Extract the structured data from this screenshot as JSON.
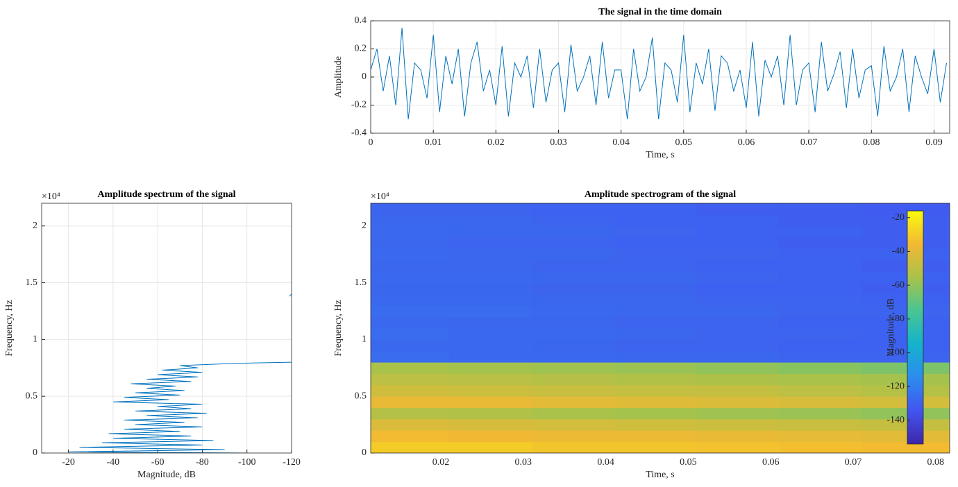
{
  "chart_data": [
    {
      "type": "line",
      "title": "The signal in the time domain",
      "x_label": "Time, s",
      "y_label": "Amplitude",
      "color": "#0072bd",
      "grid": true,
      "x": [
        0,
        0.001,
        0.002,
        0.003,
        0.004,
        0.005,
        0.006,
        0.007,
        0.008,
        0.009,
        0.01,
        0.011,
        0.012,
        0.013,
        0.014,
        0.015,
        0.016,
        0.017,
        0.018,
        0.019,
        0.02,
        0.021,
        0.022,
        0.023,
        0.024,
        0.025,
        0.026,
        0.027,
        0.028,
        0.029,
        0.03,
        0.031,
        0.032,
        0.033,
        0.034,
        0.035,
        0.036,
        0.037,
        0.038,
        0.039,
        0.04,
        0.041,
        0.042,
        0.043,
        0.044,
        0.045,
        0.046,
        0.047,
        0.048,
        0.049,
        0.05,
        0.051,
        0.052,
        0.053,
        0.054,
        0.055,
        0.056,
        0.057,
        0.058,
        0.059,
        0.06,
        0.061,
        0.062,
        0.063,
        0.064,
        0.065,
        0.066,
        0.067,
        0.068,
        0.069,
        0.07,
        0.071,
        0.072,
        0.073,
        0.074,
        0.075,
        0.076,
        0.077,
        0.078,
        0.079,
        0.08,
        0.081,
        0.082,
        0.083,
        0.084,
        0.085,
        0.086,
        0.087,
        0.088,
        0.089,
        0.09,
        0.091,
        0.092
      ],
      "y": [
        0.05,
        0.2,
        -0.1,
        0.15,
        -0.2,
        0.35,
        -0.3,
        0.1,
        0.05,
        -0.15,
        0.3,
        -0.25,
        0.15,
        -0.05,
        0.2,
        -0.28,
        0.1,
        0.25,
        -0.1,
        0.05,
        -0.2,
        0.22,
        -0.28,
        0.1,
        0.0,
        0.15,
        -0.22,
        0.2,
        -0.18,
        0.05,
        0.1,
        -0.25,
        0.23,
        -0.1,
        0.0,
        0.15,
        -0.2,
        0.25,
        -0.15,
        0.05,
        0.05,
        -0.3,
        0.2,
        -0.1,
        0.0,
        0.28,
        -0.3,
        0.1,
        0.05,
        -0.18,
        0.3,
        -0.25,
        0.1,
        -0.05,
        0.2,
        -0.24,
        0.15,
        0.1,
        -0.1,
        0.05,
        -0.22,
        0.25,
        -0.28,
        0.12,
        0.0,
        0.15,
        -0.2,
        0.3,
        -0.2,
        0.05,
        0.1,
        -0.25,
        0.25,
        -0.1,
        0.02,
        0.18,
        -0.22,
        0.2,
        -0.15,
        0.05,
        0.08,
        -0.28,
        0.22,
        -0.1,
        0.0,
        0.2,
        -0.25,
        0.15,
        0.0,
        -0.12,
        0.2,
        -0.18,
        0.1
      ],
      "xlim": [
        0,
        0.0925
      ],
      "ylim": [
        -0.4,
        0.4
      ],
      "xticks": [
        0,
        0.01,
        0.02,
        0.03,
        0.04,
        0.05,
        0.06,
        0.07,
        0.08,
        0.09
      ],
      "yticks": [
        -0.4,
        -0.2,
        0,
        0.2,
        0.4
      ]
    },
    {
      "type": "line",
      "title": "Amplitude spectrum of the signal",
      "x_label": "Magnitude, dB",
      "y_label": "Frequency, Hz",
      "y_exponent": "×10⁴",
      "color": "#0072bd",
      "grid": true,
      "x": [
        -100,
        -20,
        -90,
        -25,
        -80,
        -35,
        -85,
        -40,
        -75,
        -38,
        -70,
        -45,
        -80,
        -50,
        -72,
        -45,
        -78,
        -55,
        -82,
        -50,
        -75,
        -60,
        -80,
        -40,
        -65,
        -45,
        -70,
        -50,
        -72,
        -55,
        -68,
        -48,
        -75,
        -55,
        -78,
        -60,
        -80,
        -62,
        -78,
        -70,
        -95,
        -120,
        null,
        -119,
        -120
      ],
      "y": [
        0,
        100,
        300,
        500,
        700,
        900,
        1100,
        1300,
        1500,
        1700,
        1900,
        2100,
        2300,
        2500,
        2700,
        2900,
        3100,
        3300,
        3500,
        3700,
        3900,
        4100,
        4300,
        4500,
        4700,
        4900,
        5100,
        5300,
        5500,
        5700,
        5900,
        6100,
        6300,
        6500,
        6700,
        6900,
        7100,
        7300,
        7500,
        7700,
        7900,
        8000,
        8500,
        13800,
        14000
      ],
      "xlim": [
        -8,
        -120
      ],
      "ylim": [
        0,
        22000
      ],
      "xticks": [
        -20,
        -40,
        -60,
        -80,
        -100,
        -120
      ],
      "yticks": [
        0,
        {
          "value": 5000,
          "label": "0.5"
        },
        {
          "value": 10000,
          "label": "1"
        },
        {
          "value": 15000,
          "label": "1.5"
        },
        {
          "value": 20000,
          "label": "2"
        }
      ]
    },
    {
      "type": "heatmap",
      "title": "Amplitude spectrogram of the signal",
      "x_label": "Time, s",
      "y_label": "Frequency, Hz",
      "y_exponent": "×10⁴",
      "colorbar_label": "Magnitude, dB",
      "grid": false,
      "colormap": [
        "#3e26a8",
        "#4255f0",
        "#2d8cee",
        "#14b2cc",
        "#48c593",
        "#a8c24a",
        "#f2b933",
        "#f9fb0e"
      ],
      "xbins": [
        0.0115,
        0.021,
        0.031,
        0.041,
        0.051,
        0.061,
        0.071,
        0.0817
      ],
      "ybins": [
        0,
        1000,
        2000,
        3000,
        4000,
        5000,
        6000,
        7000,
        8000,
        9000,
        10000,
        11000,
        12000,
        13000,
        14000,
        15000,
        16000,
        17000,
        18000,
        19000,
        20000,
        21000,
        22000
      ],
      "z": [
        [
          -30,
          -30,
          -32,
          -32,
          -33,
          -34,
          -35
        ],
        [
          -35,
          -36,
          -37,
          -37,
          -38,
          -39,
          -40
        ],
        [
          -42,
          -43,
          -44,
          -45,
          -46,
          -47,
          -48
        ],
        [
          -52,
          -53,
          -55,
          -56,
          -57,
          -58,
          -60
        ],
        [
          -38,
          -38,
          -40,
          -41,
          -42,
          -43,
          -44
        ],
        [
          -45,
          -46,
          -47,
          -48,
          -48,
          -50,
          -52
        ],
        [
          -50,
          -51,
          -52,
          -53,
          -54,
          -55,
          -56
        ],
        [
          -55,
          -56,
          -57,
          -58,
          -60,
          -62,
          -64
        ],
        [
          -126,
          -127,
          -127,
          -128,
          -128,
          -129,
          -129
        ],
        [
          -127,
          -127,
          -128,
          -129,
          -129,
          -130,
          -130
        ],
        [
          -126,
          -127,
          -127,
          -128,
          -129,
          -129,
          -130
        ],
        [
          -127,
          -128,
          -128,
          -129,
          -129,
          -130,
          -130
        ],
        [
          -126,
          -126,
          -127,
          -128,
          -128,
          -129,
          -129
        ],
        [
          -127,
          -127,
          -128,
          -128,
          -129,
          -129,
          -130
        ],
        [
          -128,
          -128,
          -129,
          -129,
          -130,
          -130,
          -131
        ],
        [
          -127,
          -127,
          -128,
          -128,
          -129,
          -130,
          -130
        ],
        [
          -128,
          -128,
          -129,
          -129,
          -130,
          -130,
          -131
        ],
        [
          -127,
          -128,
          -128,
          -129,
          -129,
          -130,
          -130
        ],
        [
          -128,
          -129,
          -129,
          -130,
          -130,
          -131,
          -131
        ],
        [
          -127,
          -128,
          -128,
          -129,
          -130,
          -130,
          -131
        ],
        [
          -128,
          -128,
          -129,
          -130,
          -130,
          -131,
          -131
        ],
        [
          -129,
          -129,
          -130,
          -130,
          -131,
          -131,
          -132
        ]
      ],
      "xlim": [
        0.0115,
        0.0817
      ],
      "ylim": [
        0,
        22000
      ],
      "clim": [
        -154,
        -16
      ],
      "xticks": [
        0.02,
        0.03,
        0.04,
        0.05,
        0.06,
        0.07,
        0.08
      ],
      "yticks": [
        0,
        {
          "value": 5000,
          "label": "0.5"
        },
        {
          "value": 10000,
          "label": "1"
        },
        {
          "value": 15000,
          "label": "1.5"
        },
        {
          "value": 20000,
          "label": "2"
        }
      ],
      "cticks": [
        -20,
        -40,
        -60,
        -80,
        -100,
        -120,
        -140
      ]
    }
  ]
}
